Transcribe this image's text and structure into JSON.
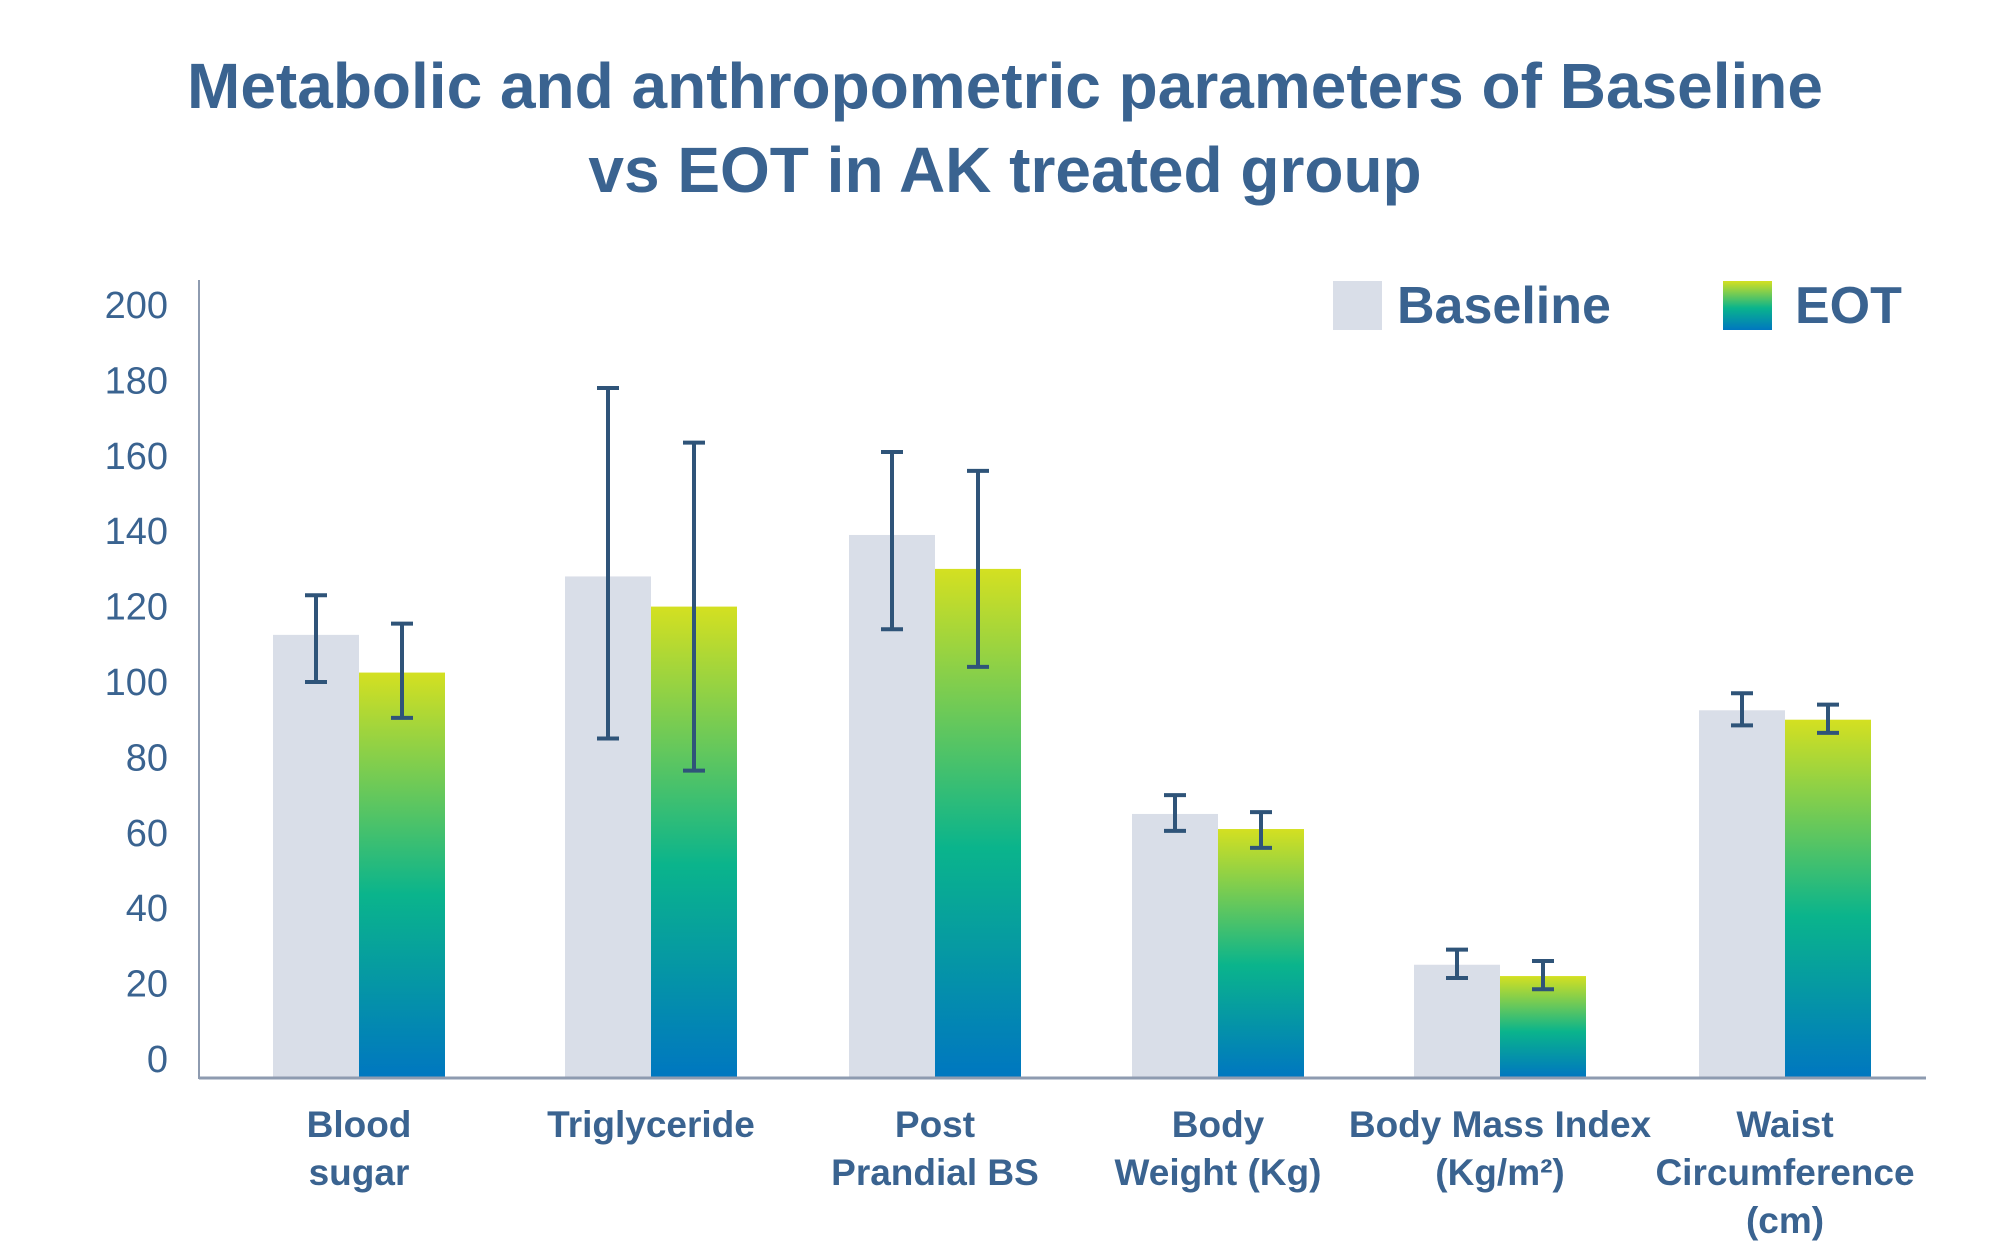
{
  "chart_data": {
    "type": "bar",
    "title": [
      "Metabolic and anthropometric parameters of Baseline",
      "vs EOT in AK treated group"
    ],
    "xlabel": "",
    "ylabel": "",
    "ylim": [
      0,
      200
    ],
    "yticks": [
      "0",
      "20",
      "40",
      "60",
      "80",
      "100",
      "120",
      "140",
      "160",
      "180",
      "200"
    ],
    "grid": false,
    "legend_position": "top-right",
    "categories": [
      [
        "Blood",
        "sugar"
      ],
      [
        "Triglyceride"
      ],
      [
        "Post",
        "Prandial BS"
      ],
      [
        "Body",
        "Weight (Kg)"
      ],
      [
        "Body Mass Index",
        "(Kg/m²)"
      ],
      [
        "Waist",
        "Circumference",
        "(cm)"
      ]
    ],
    "series": [
      {
        "name": "Baseline",
        "color": "#d9dee8",
        "values": [
          112.5,
          128,
          139,
          65,
          25,
          92.5
        ],
        "error_low": [
          100,
          85,
          114,
          60.5,
          21.5,
          88.5
        ],
        "error_high": [
          123,
          178,
          161,
          70,
          29,
          97
        ]
      },
      {
        "name": "EOT",
        "color_gradient": [
          "#d4e021",
          "#0ab48c",
          "#0077c0"
        ],
        "values": [
          102.5,
          120,
          130,
          61,
          22,
          90
        ],
        "error_low": [
          90.5,
          76.5,
          104,
          56,
          18.5,
          86.5
        ],
        "error_high": [
          115.5,
          163.5,
          156,
          65.5,
          26,
          94
        ]
      }
    ],
    "colors": {
      "text": "#3a6390",
      "axis": "#8e9bb0",
      "error_bar": "#2f5479"
    }
  }
}
